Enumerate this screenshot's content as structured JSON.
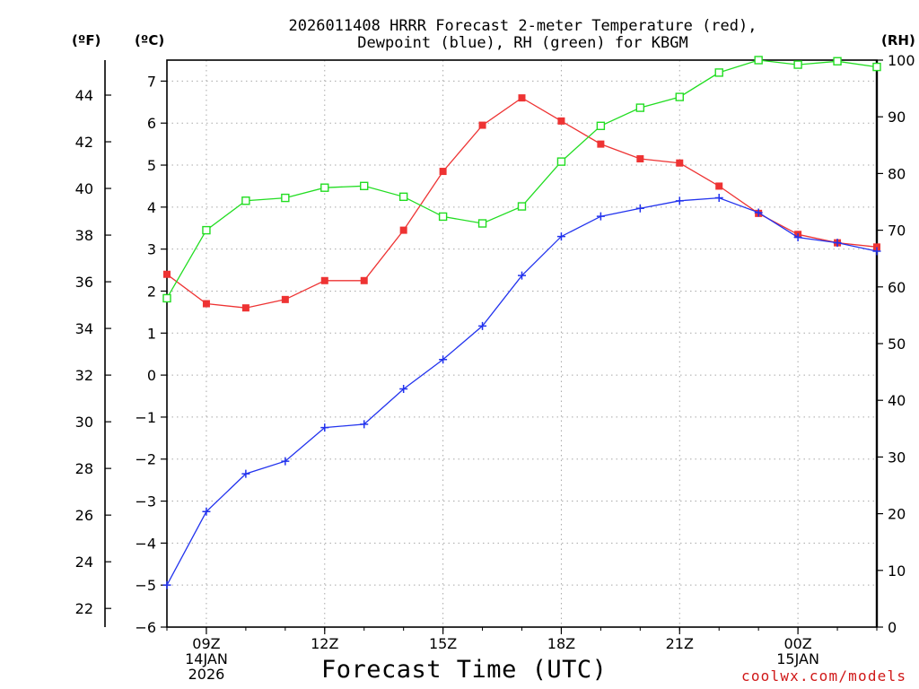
{
  "chart_data": {
    "type": "line",
    "title_line1": "2026011408 HRRR Forecast 2-meter Temperature (red),",
    "title_line2": "Dewpoint (blue), RH (green) for KBGM",
    "xlabel": "Forecast Time (UTC)",
    "credit": "coolwx.com/models",
    "unit_labels": {
      "fahrenheit": "(ºF)",
      "celsius": "(ºC)",
      "rh": "(RH)"
    },
    "x_hours": [
      8,
      9,
      10,
      11,
      12,
      13,
      14,
      15,
      16,
      17,
      18,
      19,
      20,
      21,
      22,
      23,
      24,
      25,
      26
    ],
    "x_range": [
      8,
      26
    ],
    "x_ticks": [
      {
        "hour": 9,
        "lines": [
          "09Z",
          "14JAN",
          "2026"
        ]
      },
      {
        "hour": 12,
        "lines": [
          "12Z"
        ]
      },
      {
        "hour": 15,
        "lines": [
          "15Z"
        ]
      },
      {
        "hour": 18,
        "lines": [
          "18Z"
        ]
      },
      {
        "hour": 21,
        "lines": [
          "21Z"
        ]
      },
      {
        "hour": 24,
        "lines": [
          "00Z",
          "15JAN"
        ]
      }
    ],
    "ylim_c": [
      -6,
      7.5
    ],
    "yticks_c": [
      "−6",
      "−5",
      "−4",
      "−3",
      "−2",
      "−1",
      "0",
      "1",
      "2",
      "3",
      "4",
      "5",
      "6",
      "7"
    ],
    "yticks_f": [
      "22",
      "24",
      "26",
      "28",
      "30",
      "32",
      "34",
      "36",
      "38",
      "40",
      "42",
      "44"
    ],
    "ylim_rh": [
      0,
      100
    ],
    "yticks_rh": [
      "0",
      "10",
      "20",
      "30",
      "40",
      "50",
      "60",
      "70",
      "80",
      "90",
      "100"
    ],
    "grid": true,
    "series": [
      {
        "name": "Temperature",
        "color": "#ee3333",
        "marker": "filled-square",
        "axis": "celsius",
        "values": [
          2.4,
          1.7,
          1.6,
          1.8,
          2.25,
          2.25,
          3.45,
          4.85,
          5.95,
          6.6,
          6.05,
          5.5,
          5.15,
          5.05,
          4.5,
          3.85,
          3.35,
          3.15,
          3.05
        ]
      },
      {
        "name": "Dewpoint",
        "color": "#2233ee",
        "marker": "plus",
        "axis": "celsius",
        "values": [
          -5.0,
          -3.25,
          -2.35,
          -2.05,
          -1.25,
          -1.17,
          -0.33,
          0.37,
          1.17,
          2.37,
          3.3,
          3.78,
          3.97,
          4.15,
          4.22,
          3.87,
          3.28,
          3.15,
          2.95
        ]
      },
      {
        "name": "Relative Humidity",
        "color": "#22dd22",
        "marker": "open-square",
        "axis": "rh",
        "values": [
          58,
          70,
          75.2,
          75.7,
          77.5,
          77.8,
          75.9,
          72.4,
          71.2,
          74.2,
          82.1,
          88.4,
          91.6,
          93.5,
          97.8,
          100,
          99.2,
          99.8,
          98.8
        ]
      }
    ]
  }
}
